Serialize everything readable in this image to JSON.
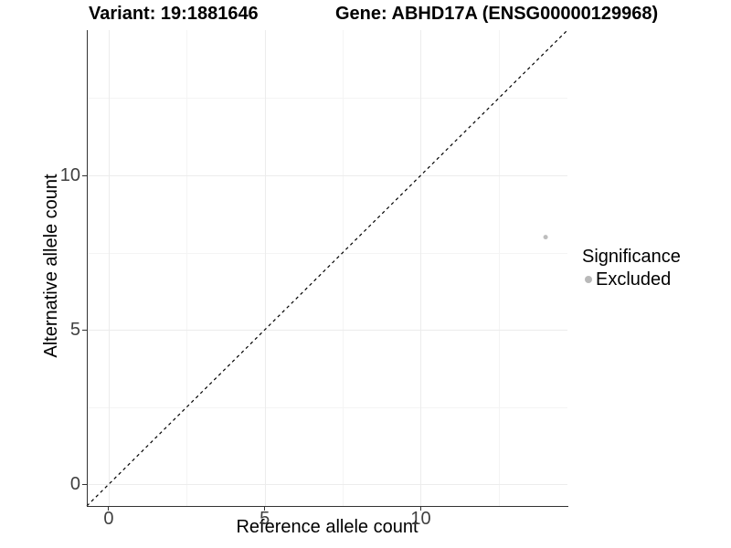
{
  "chart_data": {
    "type": "scatter",
    "titles": [
      "Variant: 19:1881646",
      "Gene: ABHD17A (ENSG00000129968)"
    ],
    "xlabel": "Reference allele count",
    "ylabel": "Alternative allele count",
    "xlim": [
      -0.7,
      14.7
    ],
    "ylim": [
      -0.7,
      14.7
    ],
    "x_ticks": [
      0,
      5,
      10
    ],
    "y_ticks": [
      0,
      5,
      10
    ],
    "x_minor_gridlines": [
      2.5,
      7.5,
      12.5
    ],
    "y_minor_gridlines": [
      2.5,
      7.5,
      12.5
    ],
    "grid": "on",
    "legend_position": "right",
    "identity_line": {
      "style": "dashed",
      "from": -0.7,
      "to": 14.7,
      "color": "#000000"
    },
    "series": [
      {
        "name": "Excluded",
        "color": "#bebebe",
        "point_radius": 2.5,
        "points": [
          {
            "x": 14,
            "y": 8
          }
        ]
      }
    ],
    "legend": {
      "title": "Significance",
      "entries": [
        {
          "label": "Excluded",
          "color": "#b9b9b9",
          "marker": "circle"
        }
      ]
    }
  },
  "colors": {
    "axis_line": "#333333",
    "tick_mark": "#333333",
    "tick_label": "#404040",
    "grid_major": "#ececec",
    "grid_minor": "#f4f4f4",
    "title": "#000000",
    "background": "#ffffff"
  }
}
